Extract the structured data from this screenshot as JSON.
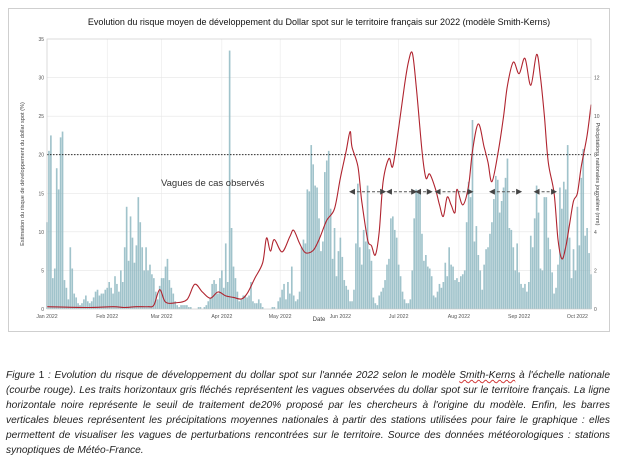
{
  "chart_data": {
    "type": "bar+line",
    "title": "Evolution du risque moyen de développement du Dollar spot sur le territoire français sur 2022 (modèle Smith-Kerns)",
    "xlabel": "Date",
    "ylabel_left": "Estimation du risque de développement du dollar spot (%)",
    "ylabel_right": "Précipitations nationales journalière (mm)",
    "x_ticks": [
      "Jan 2022",
      "Feb 2022",
      "Mar 2022",
      "Apr 2022",
      "May 2022",
      "Jun 2022",
      "Jul 2022",
      "Aug 2022",
      "Sep 2022",
      "Oct 2022"
    ],
    "ylim_left": [
      0,
      35
    ],
    "yticks_left": [
      0,
      5,
      10,
      15,
      20,
      25,
      30,
      35
    ],
    "ylim_right": [
      0,
      14
    ],
    "yticks_right": [
      0,
      2,
      4,
      6,
      8,
      10,
      12
    ],
    "day_range": [
      0,
      280
    ],
    "threshold": 20,
    "annotation_label": "Vagues de cas observés",
    "waves": [
      [
        157,
        173
      ],
      [
        176,
        189
      ],
      [
        191,
        197
      ],
      [
        201,
        218
      ],
      [
        229,
        243
      ],
      [
        252,
        261
      ]
    ],
    "risk_series_keypoints": [
      [
        0,
        0.3
      ],
      [
        20,
        0.2
      ],
      [
        34,
        0.3
      ],
      [
        40,
        0.2
      ],
      [
        46,
        0.3
      ],
      [
        52,
        0.3
      ],
      [
        55,
        0.5
      ],
      [
        58,
        2.5
      ],
      [
        61,
        0.9
      ],
      [
        66,
        0.8
      ],
      [
        72,
        1.2
      ],
      [
        76,
        3.2
      ],
      [
        80,
        2.2
      ],
      [
        84,
        1.4
      ],
      [
        88,
        2.2
      ],
      [
        92,
        1.7
      ],
      [
        96,
        1.5
      ],
      [
        100,
        1.3
      ],
      [
        103,
        2.0
      ],
      [
        107,
        4.0
      ],
      [
        111,
        6.0
      ],
      [
        113,
        9.2
      ],
      [
        115,
        7.5
      ],
      [
        117,
        9.0
      ],
      [
        121,
        7.4
      ],
      [
        125,
        9.4
      ],
      [
        127,
        10.2
      ],
      [
        130,
        8.5
      ],
      [
        133,
        7.3
      ],
      [
        137,
        7.6
      ],
      [
        140,
        9.0
      ],
      [
        144,
        11.5
      ],
      [
        148,
        13.0
      ],
      [
        151,
        17.0
      ],
      [
        154,
        20.5
      ],
      [
        156,
        23.0
      ],
      [
        157,
        21.0
      ],
      [
        160,
        18.5
      ],
      [
        162,
        14.0
      ],
      [
        165,
        9.0
      ],
      [
        167,
        8.2
      ],
      [
        169,
        7.0
      ],
      [
        171,
        10.0
      ],
      [
        173,
        16.5
      ],
      [
        176,
        19.5
      ],
      [
        178,
        18.5
      ],
      [
        181,
        23.5
      ],
      [
        184,
        29.0
      ],
      [
        186,
        32.0
      ],
      [
        188,
        33.2
      ],
      [
        190,
        29.0
      ],
      [
        193,
        20.5
      ],
      [
        195,
        17.0
      ],
      [
        197,
        17.5
      ],
      [
        200,
        15.5
      ],
      [
        202,
        13.5
      ],
      [
        204,
        12.0
      ],
      [
        206,
        14.5
      ],
      [
        208,
        13.5
      ],
      [
        210,
        12.5
      ],
      [
        211,
        15.5
      ],
      [
        214,
        13.5
      ],
      [
        217,
        16.0
      ],
      [
        219,
        20.5
      ],
      [
        222,
        24.0
      ],
      [
        225,
        21.0
      ],
      [
        227,
        19.0
      ],
      [
        229,
        16.5
      ],
      [
        232,
        20.0
      ],
      [
        235,
        25.0
      ],
      [
        237,
        29.0
      ],
      [
        240,
        32.0
      ],
      [
        243,
        30.5
      ],
      [
        246,
        32.5
      ],
      [
        249,
        29.0
      ],
      [
        252,
        33.0
      ],
      [
        254,
        30.0
      ],
      [
        256,
        25.0
      ],
      [
        258,
        19.0
      ],
      [
        261,
        15.0
      ],
      [
        263,
        9.0
      ],
      [
        265,
        6.5
      ],
      [
        267,
        8.0
      ],
      [
        269,
        11.0
      ],
      [
        271,
        14.0
      ],
      [
        273,
        15.0
      ],
      [
        275,
        18.5
      ],
      [
        278,
        22.5
      ],
      [
        280,
        26.5
      ]
    ],
    "precip_bars_mm": [
      [
        0,
        4.5
      ],
      [
        1,
        8.2
      ],
      [
        2,
        9.0
      ],
      [
        3,
        1.6
      ],
      [
        4,
        2.1
      ],
      [
        5,
        7.3
      ],
      [
        6,
        6.2
      ],
      [
        7,
        8.9
      ],
      [
        8,
        9.2
      ],
      [
        9,
        1.5
      ],
      [
        10,
        1.1
      ],
      [
        11,
        0.5
      ],
      [
        12,
        3.2
      ],
      [
        13,
        2.1
      ],
      [
        14,
        0.8
      ],
      [
        15,
        0.6
      ],
      [
        16,
        0.3
      ],
      [
        17,
        0.2
      ],
      [
        18,
        0.3
      ],
      [
        19,
        0.5
      ],
      [
        20,
        0.7
      ],
      [
        21,
        0.4
      ],
      [
        22,
        0.3
      ],
      [
        23,
        0.4
      ],
      [
        24,
        0.6
      ],
      [
        25,
        0.9
      ],
      [
        26,
        1.0
      ],
      [
        27,
        0.7
      ],
      [
        28,
        0.8
      ],
      [
        29,
        0.8
      ],
      [
        30,
        1.0
      ],
      [
        31,
        1.1
      ],
      [
        32,
        1.4
      ],
      [
        33,
        1.1
      ],
      [
        34,
        0.8
      ],
      [
        35,
        1.7
      ],
      [
        36,
        1.3
      ],
      [
        37,
        0.9
      ],
      [
        38,
        2.0
      ],
      [
        39,
        1.4
      ],
      [
        40,
        3.2
      ],
      [
        41,
        5.3
      ],
      [
        42,
        2.5
      ],
      [
        43,
        4.8
      ],
      [
        44,
        3.7
      ],
      [
        45,
        2.4
      ],
      [
        46,
        3.3
      ],
      [
        47,
        5.8
      ],
      [
        48,
        4.5
      ],
      [
        49,
        3.2
      ],
      [
        50,
        2.0
      ],
      [
        51,
        3.2
      ],
      [
        52,
        2.0
      ],
      [
        53,
        2.3
      ],
      [
        54,
        1.8
      ],
      [
        55,
        1.6
      ],
      [
        56,
        0.9
      ],
      [
        57,
        0.5
      ],
      [
        58,
        1.2
      ],
      [
        59,
        1.6
      ],
      [
        60,
        1.6
      ],
      [
        61,
        2.2
      ],
      [
        62,
        2.6
      ],
      [
        63,
        1.5
      ],
      [
        64,
        1.1
      ],
      [
        65,
        0.8
      ],
      [
        66,
        0.4
      ],
      [
        67,
        0.2
      ],
      [
        68,
        0.1
      ],
      [
        69,
        0.2
      ],
      [
        70,
        0.2
      ],
      [
        71,
        0.2
      ],
      [
        72,
        0.2
      ],
      [
        73,
        0.1
      ],
      [
        74,
        0.1
      ],
      [
        75,
        0.0
      ],
      [
        76,
        0.0
      ],
      [
        77,
        0.0
      ],
      [
        78,
        0.1
      ],
      [
        79,
        0.1
      ],
      [
        80,
        0.0
      ],
      [
        81,
        0.1
      ],
      [
        82,
        0.2
      ],
      [
        83,
        0.4
      ],
      [
        84,
        0.6
      ],
      [
        85,
        1.3
      ],
      [
        86,
        1.5
      ],
      [
        87,
        1.3
      ],
      [
        88,
        0.8
      ],
      [
        89,
        1.6
      ],
      [
        90,
        2.0
      ],
      [
        91,
        1.1
      ],
      [
        92,
        3.4
      ],
      [
        93,
        1.4
      ],
      [
        94,
        13.4
      ],
      [
        95,
        4.2
      ],
      [
        96,
        2.2
      ],
      [
        97,
        1.6
      ],
      [
        98,
        0.9
      ],
      [
        99,
        0.4
      ],
      [
        100,
        0.5
      ],
      [
        101,
        0.7
      ],
      [
        102,
        0.7
      ],
      [
        103,
        0.6
      ],
      [
        104,
        0.7
      ],
      [
        105,
        1.4
      ],
      [
        106,
        0.4
      ],
      [
        107,
        0.3
      ],
      [
        108,
        0.3
      ],
      [
        109,
        0.5
      ],
      [
        110,
        0.3
      ],
      [
        111,
        0.1
      ],
      [
        112,
        0.0
      ],
      [
        113,
        0.0
      ],
      [
        114,
        0.0
      ],
      [
        115,
        0.0
      ],
      [
        116,
        0.1
      ],
      [
        117,
        0.1
      ],
      [
        118,
        0.0
      ],
      [
        119,
        0.4
      ],
      [
        120,
        0.6
      ],
      [
        121,
        1.0
      ],
      [
        122,
        1.3
      ],
      [
        123,
        0.5
      ],
      [
        124,
        1.4
      ],
      [
        125,
        0.8
      ],
      [
        126,
        2.2
      ],
      [
        127,
        0.7
      ],
      [
        128,
        0.4
      ],
      [
        129,
        0.5
      ],
      [
        130,
        0.9
      ],
      [
        131,
        3.2
      ],
      [
        132,
        3.6
      ],
      [
        133,
        3.4
      ],
      [
        134,
        6.2
      ],
      [
        135,
        6.1
      ],
      [
        136,
        8.5
      ],
      [
        137,
        7.5
      ],
      [
        138,
        6.4
      ],
      [
        139,
        6.3
      ],
      [
        140,
        4.7
      ],
      [
        141,
        3.0
      ],
      [
        142,
        3.5
      ],
      [
        143,
        7.1
      ],
      [
        144,
        7.7
      ],
      [
        145,
        8.2
      ],
      [
        146,
        5.2
      ],
      [
        147,
        2.6
      ],
      [
        148,
        4.2
      ],
      [
        149,
        1.7
      ],
      [
        150,
        3.0
      ],
      [
        151,
        3.7
      ],
      [
        152,
        2.7
      ],
      [
        153,
        1.5
      ],
      [
        154,
        1.2
      ],
      [
        155,
        1.0
      ],
      [
        156,
        0.4
      ],
      [
        157,
        0.4
      ],
      [
        158,
        1.0
      ],
      [
        159,
        3.4
      ],
      [
        160,
        6.5
      ],
      [
        161,
        3.2
      ],
      [
        162,
        2.3
      ],
      [
        163,
        4.1
      ],
      [
        164,
        3.5
      ],
      [
        165,
        6.4
      ],
      [
        166,
        3.1
      ],
      [
        167,
        2.5
      ],
      [
        168,
        0.6
      ],
      [
        169,
        0.3
      ],
      [
        170,
        0.2
      ],
      [
        171,
        0.7
      ],
      [
        172,
        0.9
      ],
      [
        173,
        1.1
      ],
      [
        174,
        1.5
      ],
      [
        175,
        2.3
      ],
      [
        176,
        2.6
      ],
      [
        177,
        4.7
      ],
      [
        178,
        4.8
      ],
      [
        179,
        4.1
      ],
      [
        180,
        3.7
      ],
      [
        181,
        2.3
      ],
      [
        182,
        1.7
      ],
      [
        183,
        0.9
      ],
      [
        184,
        0.5
      ],
      [
        185,
        0.3
      ],
      [
        186,
        0.3
      ],
      [
        187,
        0.5
      ],
      [
        188,
        2.0
      ],
      [
        189,
        4.7
      ],
      [
        190,
        6.2
      ],
      [
        191,
        6.1
      ],
      [
        192,
        6.0
      ],
      [
        193,
        3.9
      ],
      [
        194,
        2.5
      ],
      [
        195,
        2.8
      ],
      [
        196,
        2.2
      ],
      [
        197,
        2.1
      ],
      [
        198,
        1.7
      ],
      [
        199,
        0.7
      ],
      [
        200,
        0.6
      ],
      [
        201,
        0.9
      ],
      [
        202,
        1.3
      ],
      [
        203,
        1.1
      ],
      [
        204,
        1.4
      ],
      [
        205,
        2.4
      ],
      [
        206,
        1.7
      ],
      [
        207,
        3.2
      ],
      [
        208,
        2.3
      ],
      [
        209,
        2.2
      ],
      [
        210,
        1.5
      ],
      [
        211,
        1.6
      ],
      [
        212,
        1.4
      ],
      [
        213,
        1.7
      ],
      [
        214,
        1.8
      ],
      [
        215,
        2.0
      ],
      [
        216,
        4.5
      ],
      [
        217,
        6.6
      ],
      [
        218,
        5.8
      ],
      [
        219,
        9.8
      ],
      [
        220,
        3.5
      ],
      [
        221,
        4.3
      ],
      [
        222,
        2.8
      ],
      [
        223,
        2.0
      ],
      [
        224,
        1.0
      ],
      [
        225,
        2.3
      ],
      [
        226,
        3.1
      ],
      [
        227,
        3.2
      ],
      [
        228,
        3.9
      ],
      [
        229,
        4.5
      ],
      [
        230,
        5.7
      ],
      [
        231,
        6.9
      ],
      [
        232,
        6.7
      ],
      [
        233,
        5.0
      ],
      [
        234,
        5.6
      ],
      [
        235,
        6.3
      ],
      [
        236,
        6.8
      ],
      [
        237,
        7.8
      ],
      [
        238,
        4.2
      ],
      [
        239,
        4.1
      ],
      [
        240,
        3.2
      ],
      [
        241,
        2.0
      ],
      [
        242,
        3.4
      ],
      [
        243,
        1.9
      ],
      [
        244,
        1.3
      ],
      [
        245,
        1.1
      ],
      [
        246,
        1.3
      ],
      [
        247,
        0.9
      ],
      [
        248,
        1.4
      ],
      [
        249,
        3.8
      ],
      [
        250,
        3.2
      ],
      [
        251,
        4.7
      ],
      [
        252,
        6.4
      ],
      [
        253,
        5.0
      ],
      [
        254,
        2.1
      ],
      [
        255,
        2.0
      ],
      [
        256,
        5.8
      ],
      [
        257,
        5.8
      ],
      [
        258,
        3.7
      ],
      [
        259,
        3.1
      ],
      [
        260,
        1.9
      ],
      [
        261,
        0.8
      ],
      [
        262,
        1.1
      ],
      [
        263,
        2.3
      ],
      [
        264,
        6.3
      ],
      [
        265,
        5.2
      ],
      [
        266,
        6.6
      ],
      [
        267,
        6.2
      ],
      [
        268,
        8.5
      ],
      [
        269,
        3.7
      ],
      [
        270,
        1.6
      ],
      [
        271,
        3.1
      ],
      [
        272,
        2.0
      ],
      [
        273,
        5.3
      ],
      [
        274,
        3.3
      ],
      [
        275,
        6.8
      ],
      [
        276,
        8.3
      ],
      [
        277,
        3.8
      ],
      [
        278,
        4.2
      ],
      [
        279,
        2.9
      ],
      [
        280,
        1.8
      ]
    ],
    "colors": {
      "risk_line": "#b0242f",
      "bars": "#8fb9c2",
      "threshold": "#111111",
      "arrows": "#555555",
      "grid": "#e6e6e6",
      "plot_bg": "#ffffff"
    },
    "grid": true
  },
  "caption": {
    "label": "Figure ",
    "number": "1",
    "text_1": " : Evolution du risque de développement du dollar spot sur l'année 2022 selon le modèle ",
    "misspelled": "Smith-Kerns",
    "text_2": " à l'échelle nationale (courbe rouge). Les traits horizontaux gris fléchés représentent les vagues observées du dollar spot sur le territoire français. La ligne horizontale noire représente le seuil de traitement de20% proposé par les chercheurs à l'origine du modèle. Enfin, les barres verticales bleues représentent les précipitations moyennes nationales à partir des stations utilisées pour faire le graphique : elles permettent de visualiser les vagues de perturbations rencontrées sur le territoire. Source des données météorologiques : stations synoptiques de Météo-France."
  }
}
